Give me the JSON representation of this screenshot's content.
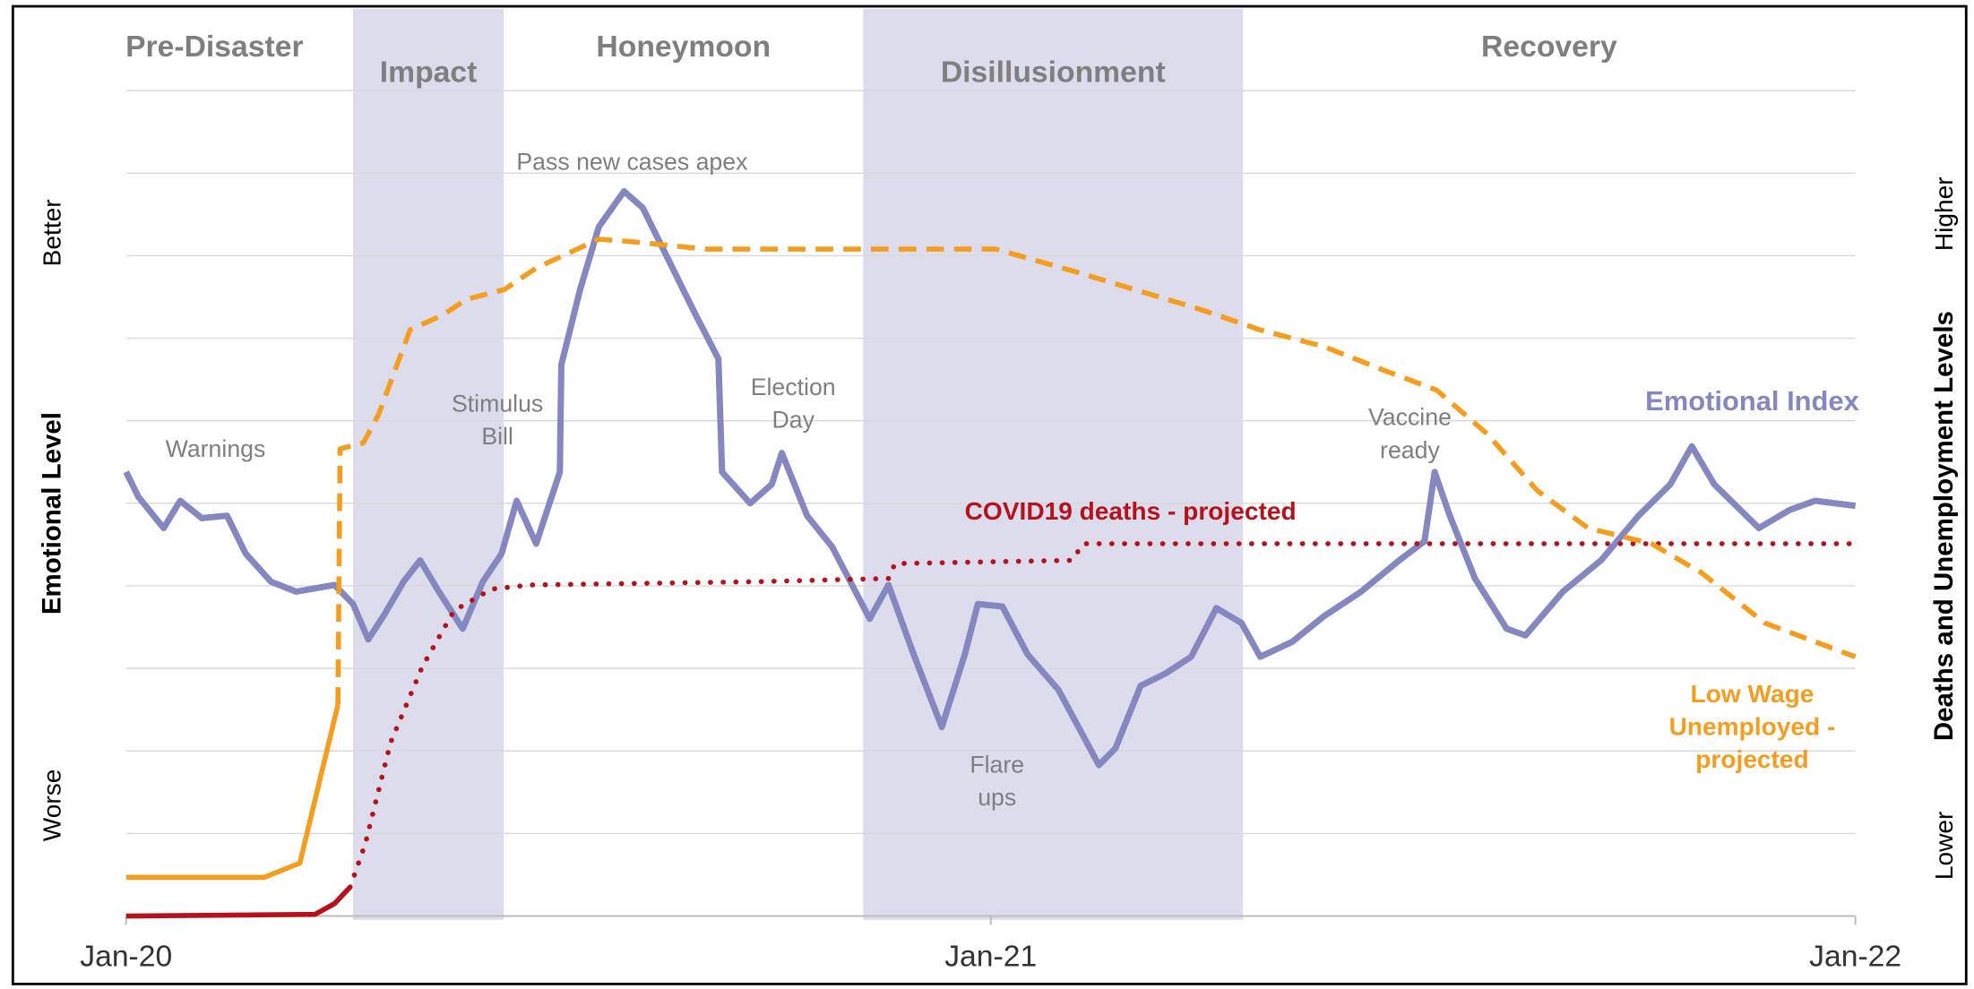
{
  "chart_data": {
    "type": "line",
    "y_axis": {
      "title": "Emotional Level",
      "top_label": "Better",
      "bottom_label": "Worse"
    },
    "y2_axis": {
      "title": "Deaths and Unemployment Levels",
      "top_label": "Higher",
      "bottom_label": "Lower"
    },
    "xlim": [
      0,
      24
    ],
    "xticks": [
      {
        "value": 0,
        "label": "Jan-20"
      },
      {
        "value": 12,
        "label": "Jan-21"
      },
      {
        "value": 24,
        "label": "Jan-22"
      }
    ],
    "ylim": [
      0,
      10
    ],
    "yticks": [
      0,
      1,
      2,
      3,
      4,
      5,
      6,
      7,
      8,
      9,
      10
    ],
    "grid": true,
    "phases": [
      {
        "name": "Pre-Disaster",
        "start": 0,
        "end": 3.15,
        "shaded": false
      },
      {
        "name": "Impact",
        "start": 3.15,
        "end": 5.24,
        "shaded": true
      },
      {
        "name": "Honeymoon",
        "start": 5.24,
        "end": 10.23,
        "shaded": false
      },
      {
        "name": "Disillusionment",
        "start": 10.23,
        "end": 15.5,
        "shaded": true
      },
      {
        "name": "Recovery",
        "start": 15.5,
        "end": 24,
        "shaded": false
      }
    ],
    "band_color": "#dcdcec",
    "annotations": [
      "Warnings",
      "Stimulus Bill",
      "Pass new cases apex",
      "Election Day",
      "Flare ups",
      "Vaccine ready"
    ],
    "series": [
      {
        "name": "Emotional Index",
        "color": "#8587c1",
        "style": "solid",
        "x": [
          0,
          0.17,
          0.52,
          0.75,
          1.05,
          1.4,
          1.66,
          2.01,
          2.36,
          2.89,
          3.15,
          3.36,
          3.59,
          3.85,
          4.08,
          4.34,
          4.67,
          4.95,
          5.21,
          5.42,
          5.69,
          6.02,
          6.04,
          6.3,
          6.56,
          6.91,
          7.17,
          7.6,
          7.9,
          8.22,
          8.27,
          8.66,
          8.96,
          9.1,
          9.45,
          9.8,
          10.32,
          10.58,
          10.93,
          11.32,
          11.64,
          11.82,
          12.16,
          12.51,
          12.94,
          13.5,
          13.73,
          14.08,
          14.43,
          14.78,
          15.13,
          15.48,
          15.74,
          16.18,
          16.62,
          17.14,
          17.67,
          18.02,
          18.16,
          18.37,
          18.72,
          19.16,
          19.42,
          19.94,
          20.47,
          20.99,
          21.43,
          21.73,
          22.04,
          22.66,
          23.09,
          23.44,
          24
        ],
        "values": [
          5.38,
          5.08,
          4.7,
          5.03,
          4.82,
          4.85,
          4.39,
          4.05,
          3.93,
          4.01,
          3.78,
          3.35,
          3.66,
          4.05,
          4.31,
          3.93,
          3.48,
          4.05,
          4.39,
          5.03,
          4.51,
          5.38,
          6.68,
          7.59,
          8.35,
          8.78,
          8.58,
          7.82,
          7.29,
          6.75,
          5.38,
          5.0,
          5.23,
          5.61,
          4.85,
          4.47,
          3.6,
          4.01,
          3.17,
          2.29,
          3.17,
          3.78,
          3.75,
          3.17,
          2.74,
          1.83,
          2.03,
          2.79,
          2.94,
          3.14,
          3.73,
          3.55,
          3.14,
          3.32,
          3.63,
          3.93,
          4.31,
          4.54,
          5.38,
          4.85,
          4.09,
          3.48,
          3.4,
          3.93,
          4.31,
          4.85,
          5.23,
          5.69,
          5.23,
          4.7,
          4.92,
          5.03,
          4.97
        ]
      },
      {
        "name": "COVID19 deaths - projected",
        "color": "#b5121b",
        "style": "dot",
        "projected_from": 3.11,
        "x": [
          0,
          2.62,
          2.89,
          3.11,
          3.32,
          3.67,
          4.11,
          4.55,
          5.07,
          5.6,
          8.75,
          10.58,
          10.67,
          13.12,
          13.29,
          24
        ],
        "values": [
          0,
          0.02,
          0.15,
          0.35,
          0.88,
          2.1,
          3.02,
          3.7,
          3.96,
          4.01,
          4.05,
          4.09,
          4.27,
          4.31,
          4.51,
          4.51
        ]
      },
      {
        "name": "Low Wage Unemployed - projected",
        "color": "#f59d1e",
        "style": "dash",
        "projected_from": 2.94,
        "x": [
          0,
          1.92,
          2.41,
          2.94,
          2.97,
          3.29,
          3.5,
          3.94,
          4.41,
          4.72,
          5.25,
          5.69,
          6.56,
          7.0,
          8.05,
          12.07,
          13.12,
          14.87,
          15.74,
          16.62,
          17.49,
          18.19,
          18.89,
          19.59,
          20.29,
          21.17,
          21.86,
          22.74,
          24
        ],
        "values": [
          0.47,
          0.47,
          0.64,
          2.56,
          5.66,
          5.73,
          6.07,
          7.1,
          7.29,
          7.47,
          7.59,
          7.85,
          8.2,
          8.17,
          8.08,
          8.08,
          7.82,
          7.36,
          7.1,
          6.9,
          6.6,
          6.37,
          5.84,
          5.15,
          4.7,
          4.51,
          4.16,
          3.55,
          3.14
        ]
      }
    ]
  }
}
